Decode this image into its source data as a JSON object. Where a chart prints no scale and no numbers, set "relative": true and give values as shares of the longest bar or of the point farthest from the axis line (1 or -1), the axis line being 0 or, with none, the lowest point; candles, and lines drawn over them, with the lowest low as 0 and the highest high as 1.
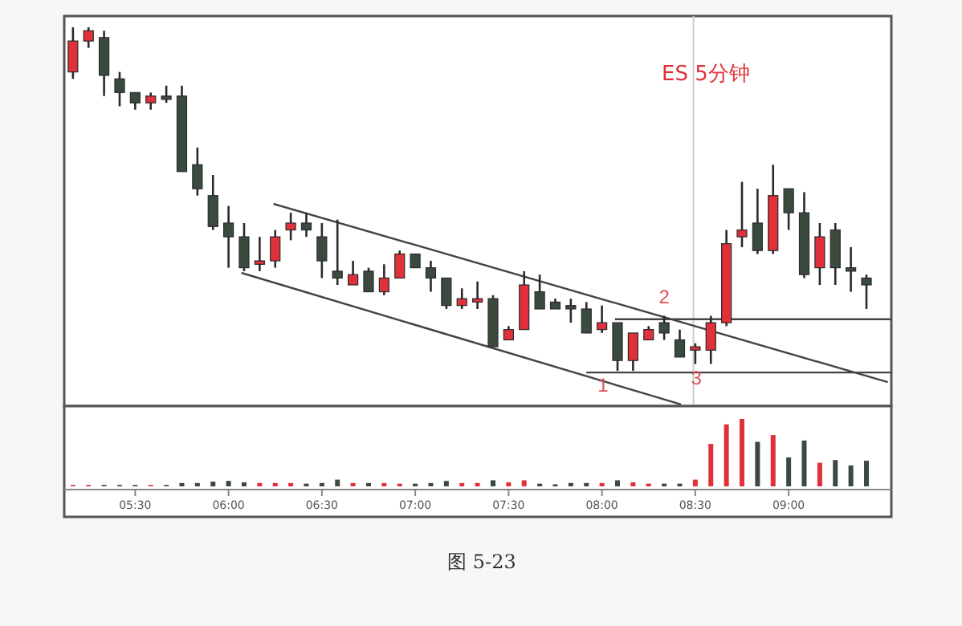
{
  "chart_data": [
    {
      "type": "candlestick",
      "relative": true,
      "tick_labels": false,
      "xlim": [
        5.12,
        9.55
      ],
      "x": [
        5.1667,
        5.25,
        5.3333,
        5.4167,
        5.5,
        5.5833,
        5.6667,
        5.75,
        5.8333,
        5.9167,
        6,
        6.0833,
        6.1667,
        6.25,
        6.3333,
        6.4167,
        6.5,
        6.5833,
        6.6667,
        6.75,
        6.8333,
        6.9167,
        7,
        7.0833,
        7.1667,
        7.25,
        7.3333,
        7.4167,
        7.5,
        7.5833,
        7.6667,
        7.75,
        7.8333,
        7.9167,
        8,
        8.0833,
        8.1667,
        8.25,
        8.3333,
        8.4167,
        8.5,
        8.5833,
        8.6667,
        8.75,
        8.8333,
        8.9167,
        9,
        9.0833,
        9.1667,
        9.25,
        9.3333,
        9.4167
      ],
      "ohlc": [
        [
          0.87,
          1,
          0.85,
          0.96
        ],
        [
          0.96,
          1,
          0.94,
          0.99
        ],
        [
          0.97,
          0.99,
          0.8,
          0.86
        ],
        [
          0.85,
          0.87,
          0.77,
          0.81
        ],
        [
          0.81,
          0.81,
          0.76,
          0.78
        ],
        [
          0.78,
          0.81,
          0.76,
          0.8
        ],
        [
          0.8,
          0.83,
          0.78,
          0.79
        ],
        [
          0.8,
          0.83,
          0.58,
          0.58
        ],
        [
          0.6,
          0.65,
          0.51,
          0.53
        ],
        [
          0.51,
          0.57,
          0.41,
          0.42
        ],
        [
          0.43,
          0.48,
          0.3,
          0.39
        ],
        [
          0.39,
          0.43,
          0.29,
          0.3
        ],
        [
          0.31,
          0.39,
          0.29,
          0.32
        ],
        [
          0.32,
          0.41,
          0.3,
          0.39
        ],
        [
          0.41,
          0.46,
          0.38,
          0.43
        ],
        [
          0.43,
          0.46,
          0.39,
          0.41
        ],
        [
          0.39,
          0.43,
          0.27,
          0.32
        ],
        [
          0.29,
          0.44,
          0.25,
          0.27
        ],
        [
          0.25,
          0.32,
          0.25,
          0.28
        ],
        [
          0.29,
          0.3,
          0.23,
          0.23
        ],
        [
          0.23,
          0.31,
          0.22,
          0.27
        ],
        [
          0.27,
          0.35,
          0.27,
          0.34
        ],
        [
          0.34,
          0.34,
          0.3,
          0.3
        ],
        [
          0.3,
          0.32,
          0.23,
          0.27
        ],
        [
          0.27,
          0.27,
          0.18,
          0.19
        ],
        [
          0.19,
          0.24,
          0.18,
          0.21
        ],
        [
          0.2,
          0.26,
          0.18,
          0.21
        ],
        [
          0.21,
          0.22,
          0.07,
          0.07
        ],
        [
          0.09,
          0.13,
          0.09,
          0.12
        ],
        [
          0.12,
          0.29,
          0.12,
          0.25
        ],
        [
          0.23,
          0.28,
          0.18,
          0.18
        ],
        [
          0.2,
          0.21,
          0.18,
          0.18
        ],
        [
          0.19,
          0.21,
          0.14,
          0.18
        ],
        [
          0.18,
          0.2,
          0.11,
          0.11
        ],
        [
          0.12,
          0.19,
          0.11,
          0.14
        ],
        [
          0.14,
          0.14,
          0,
          0.03
        ],
        [
          0.03,
          0.11,
          0,
          0.11
        ],
        [
          0.09,
          0.13,
          0.09,
          0.12
        ],
        [
          0.14,
          0.16,
          0.09,
          0.11
        ],
        [
          0.09,
          0.12,
          0.04,
          0.04
        ],
        [
          0.06,
          0.08,
          0.02,
          0.07
        ],
        [
          0.06,
          0.16,
          0.02,
          0.14
        ],
        [
          0.14,
          0.41,
          0.13,
          0.37
        ],
        [
          0.39,
          0.55,
          0.36,
          0.41
        ],
        [
          0.43,
          0.53,
          0.34,
          0.35
        ],
        [
          0.35,
          0.6,
          0.34,
          0.51
        ],
        [
          0.53,
          0.53,
          0.41,
          0.46
        ],
        [
          0.46,
          0.52,
          0.27,
          0.28
        ],
        [
          0.3,
          0.43,
          0.25,
          0.39
        ],
        [
          0.41,
          0.43,
          0.25,
          0.3
        ],
        [
          0.3,
          0.36,
          0.23,
          0.29
        ],
        [
          0.27,
          0.28,
          0.18,
          0.25
        ]
      ],
      "colors": [
        "#e0303a",
        "#e0303a",
        "#3b4a3f",
        "#3b4a3f",
        "#3b4a3f",
        "#e0303a",
        "#3b4a3f",
        "#3b4a3f",
        "#3b4a3f",
        "#3b4a3f",
        "#3b4a3f",
        "#3b4a3f",
        "#e0303a",
        "#e0303a",
        "#e0303a",
        "#3b4a3f",
        "#3b4a3f",
        "#3b4a3f",
        "#e0303a",
        "#3b4a3f",
        "#e0303a",
        "#e0303a",
        "#3b4a3f",
        "#3b4a3f",
        "#3b4a3f",
        "#e0303a",
        "#e0303a",
        "#3b4a3f",
        "#e0303a",
        "#e0303a",
        "#3b4a3f",
        "#3b4a3f",
        "#3b4a3f",
        "#3b4a3f",
        "#e0303a",
        "#3b4a3f",
        "#e0303a",
        "#e0303a",
        "#3b4a3f",
        "#3b4a3f",
        "#e0303a",
        "#e0303a",
        "#e0303a",
        "#e0303a",
        "#3b4a3f",
        "#e0303a",
        "#3b4a3f",
        "#3b4a3f",
        "#e0303a",
        "#3b4a3f",
        "#3b4a3f",
        "#3b4a3f"
      ],
      "series": [
        {
          "type": "line",
          "x": [
            6.241,
            9.531
          ],
          "values": [
            0.486,
            -0.033
          ],
          "color": "#444444"
        },
        {
          "type": "line",
          "x": [
            6.069,
            8.423
          ],
          "values": [
            0.285,
            -0.098
          ],
          "color": "#444444"
        },
        {
          "type": "line",
          "x": [
            8.07,
            9.548
          ],
          "values": [
            0.15,
            0.15
          ],
          "color": "#444444"
        },
        {
          "type": "line",
          "x": [
            7.916,
            9.548
          ],
          "values": [
            -0.005,
            -0.005
          ],
          "color": "#444444"
        }
      ],
      "ref_lines": [
        {
          "axis": "x",
          "value": 8.49,
          "color": "#cccccc"
        }
      ],
      "annotations": [
        "ES 5分钟",
        {
          "text": "1",
          "x": 8.0833,
          "y": 0
        },
        {
          "text": "2",
          "x": 8.3333,
          "y": 0.16
        },
        {
          "text": "3",
          "x": 8.5833,
          "y": 0.02
        }
      ]
    },
    {
      "type": "bar",
      "relative": true,
      "tick_labels": "x",
      "xlim": [
        5.12,
        9.55
      ],
      "x": [
        5.1667,
        5.25,
        5.3333,
        5.4167,
        5.5,
        5.5833,
        5.6667,
        5.75,
        5.8333,
        5.9167,
        6,
        6.0833,
        6.1667,
        6.25,
        6.3333,
        6.4167,
        6.5,
        6.5833,
        6.6667,
        6.75,
        6.8333,
        6.9167,
        7,
        7.0833,
        7.1667,
        7.25,
        7.3333,
        7.4167,
        7.5,
        7.5833,
        7.6667,
        7.75,
        7.8333,
        7.9167,
        8,
        8.0833,
        8.1667,
        8.25,
        8.3333,
        8.4167,
        8.5,
        8.5833,
        8.6667,
        8.75,
        8.8333,
        8.9167,
        9,
        9.0833,
        9.1667,
        9.25,
        9.3333,
        9.4167
      ],
      "values": [
        0.02,
        0.02,
        0.02,
        0.02,
        0.02,
        0.02,
        0.02,
        0.05,
        0.05,
        0.07,
        0.08,
        0.06,
        0.05,
        0.05,
        0.05,
        0.04,
        0.05,
        0.1,
        0.05,
        0.05,
        0.05,
        0.04,
        0.04,
        0.05,
        0.08,
        0.05,
        0.05,
        0.09,
        0.06,
        0.09,
        0.04,
        0.03,
        0.05,
        0.05,
        0.05,
        0.09,
        0.06,
        0.04,
        0.04,
        0.04,
        0.1,
        0.63,
        0.92,
        1,
        0.66,
        0.76,
        0.43,
        0.68,
        0.35,
        0.39,
        0.31,
        0.38
      ],
      "colors": [
        "#e0303a",
        "#e0303a",
        "#3b4a3f",
        "#3b4a3f",
        "#3b4a3f",
        "#e0303a",
        "#3b4a3f",
        "#3b4a3f",
        "#3b4a3f",
        "#3b4a3f",
        "#3b4a3f",
        "#3b4a3f",
        "#e0303a",
        "#e0303a",
        "#e0303a",
        "#3b4a3f",
        "#3b4a3f",
        "#3b4a3f",
        "#e0303a",
        "#3b4a3f",
        "#e0303a",
        "#e0303a",
        "#3b4a3f",
        "#3b4a3f",
        "#3b4a3f",
        "#e0303a",
        "#e0303a",
        "#3b4a3f",
        "#e0303a",
        "#e0303a",
        "#3b4a3f",
        "#3b4a3f",
        "#3b4a3f",
        "#3b4a3f",
        "#e0303a",
        "#3b4a3f",
        "#e0303a",
        "#e0303a",
        "#3b4a3f",
        "#3b4a3f",
        "#e0303a",
        "#e0303a",
        "#e0303a",
        "#e0303a",
        "#3b4a3f",
        "#e0303a",
        "#3b4a3f",
        "#3b4a3f",
        "#e0303a",
        "#3b4a3f",
        "#3b4a3f",
        "#3b4a3f"
      ],
      "xticks": [
        {
          "value": 5.5,
          "label": "05:30"
        },
        {
          "value": 6,
          "label": "06:00"
        },
        {
          "value": 6.5,
          "label": "06:30"
        },
        {
          "value": 7,
          "label": "07:00"
        },
        {
          "value": 7.5,
          "label": "07:30"
        },
        {
          "value": 8,
          "label": "08:00"
        },
        {
          "value": 8.5,
          "label": "08:30"
        },
        {
          "value": 9,
          "label": "09:00"
        }
      ],
      "annotations": [
        "图 5-23"
      ]
    }
  ]
}
